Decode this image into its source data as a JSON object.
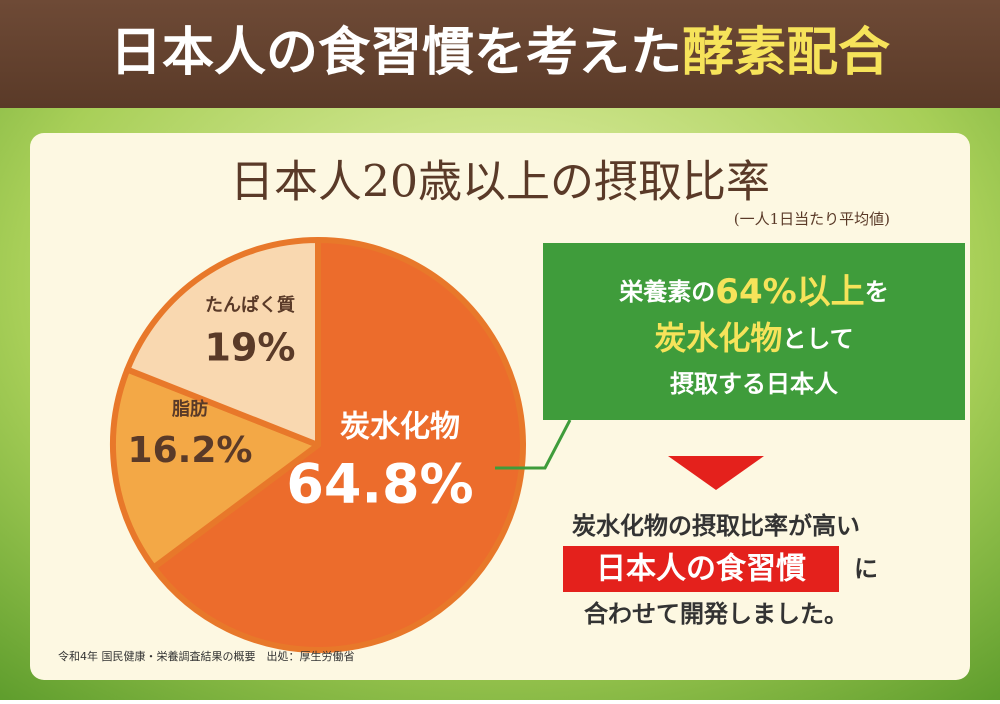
{
  "header": {
    "title_main": "日本人の食習慣を考えた",
    "title_highlight": "酵素配合"
  },
  "chart_data": {
    "type": "pie",
    "title": "日本人20歳以上の摂取比率",
    "subtitle": "(一人1日当たり平均値)",
    "categories": [
      "炭水化物",
      "脂肪",
      "たんぱく質"
    ],
    "values": [
      64.8,
      16.2,
      19
    ],
    "value_labels": [
      "64.8%",
      "16.2%",
      "19%"
    ],
    "colors": [
      "#ec6c2c",
      "#f3a846",
      "#f9d8b0"
    ],
    "callout": {
      "line1": [
        "栄養素の",
        "64%以上",
        "を"
      ],
      "line2": [
        "炭水化物",
        "として"
      ],
      "line3": "摂取する日本人"
    },
    "conclusion": {
      "line1": "炭水化物の摂取比率が高い",
      "highlight": "日本人の食習慣",
      "suffix": "に",
      "line3": "合わせて開発しました。"
    },
    "source": "令和4年 国民健康・栄養調査結果の概要　出処：厚生労働省"
  }
}
